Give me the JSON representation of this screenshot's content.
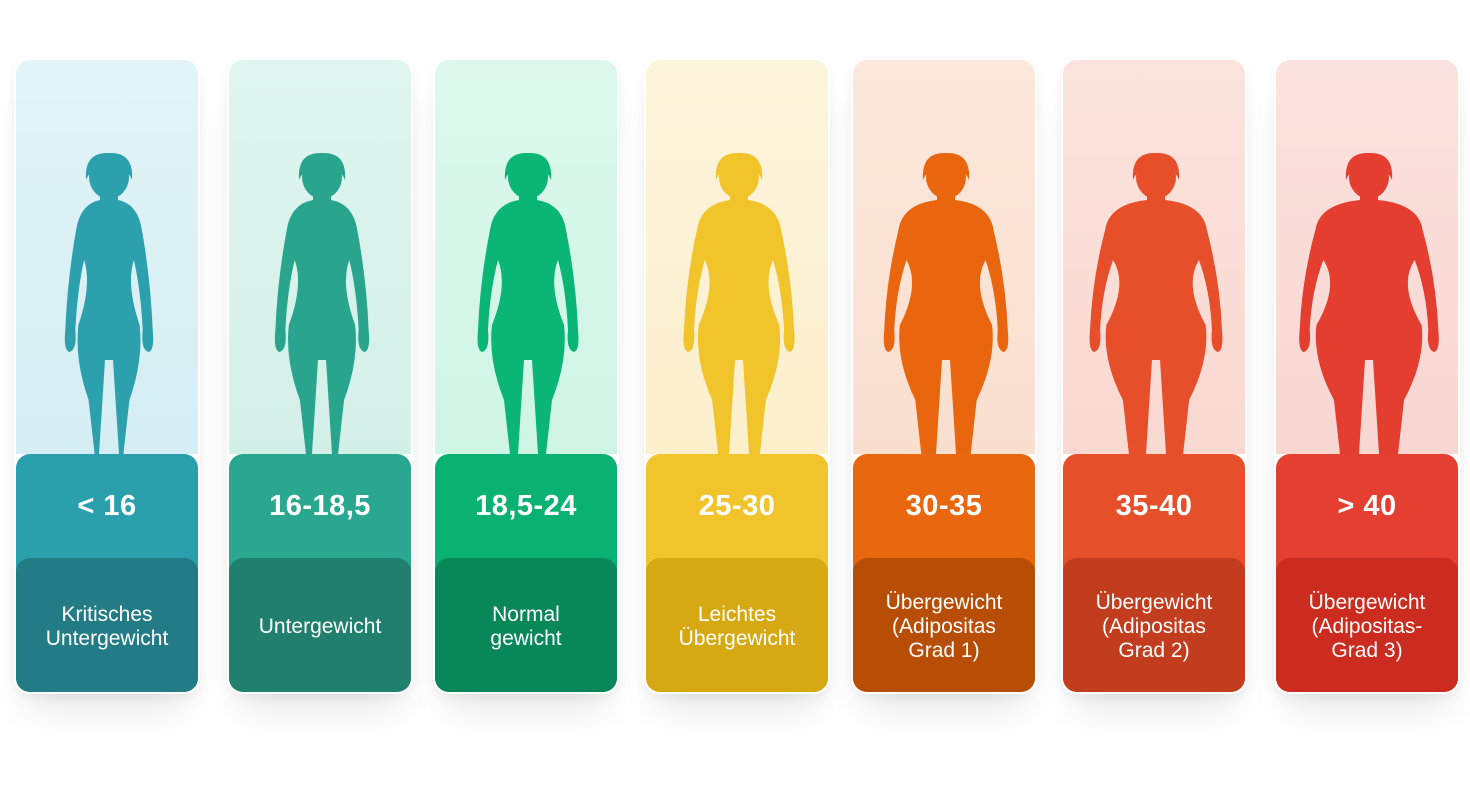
{
  "categories": [
    {
      "range": "< 16",
      "label": "Kritisches\nUntergewicht",
      "colors": {
        "bg_top": "#e2f4f8",
        "bg_bottom": "#d4eef3",
        "figure": "#2ca0ad",
        "value_bg": "#2ba0ad",
        "label_bg": "#237b85"
      },
      "figure_width": 0.85
    },
    {
      "range": "16-18,5",
      "label": "Untergewicht",
      "colors": {
        "bg_top": "#e0f5f0",
        "bg_bottom": "#d3f0e8",
        "figure": "#2aa58d",
        "value_bg": "#2aa78f",
        "label_bg": "#217f6e"
      },
      "figure_width": 0.92
    },
    {
      "range": "18,5-24",
      "label": "Normal\ngewicht",
      "colors": {
        "bg_top": "#dcf8ed",
        "bg_bottom": "#cff5e5",
        "figure": "#0ab575",
        "value_bg": "#09b272",
        "label_bg": "#088758"
      },
      "figure_width": 1.0
    },
    {
      "range": "25-30",
      "label": "Leichtes\nÜbergewicht",
      "colors": {
        "bg_top": "#fdf4dc",
        "bg_bottom": "#fcefcc",
        "figure": "#f1c42b",
        "value_bg": "#f2c42c",
        "label_bg": "#d6a812"
      },
      "figure_width": 1.12
    },
    {
      "range": "30-35",
      "label": "Übergewicht\n(Adipositas\nGrad 1)",
      "colors": {
        "bg_top": "#fce8dc",
        "bg_bottom": "#fadfcf",
        "figure": "#e9660f",
        "value_bg": "#e9680f",
        "label_bg": "#b84e06"
      },
      "figure_width": 1.28
    },
    {
      "range": "35-40",
      "label": "Übergewicht\n(Adipositas\nGrad 2)",
      "colors": {
        "bg_top": "#fce3dd",
        "bg_bottom": "#f9d9d1",
        "figure": "#e64f2a",
        "value_bg": "#e5502b",
        "label_bg": "#c23d1d"
      },
      "figure_width": 1.38
    },
    {
      "range": "> 40",
      "label": "Übergewicht\n(Adipositas-\nGrad 3)",
      "colors": {
        "bg_top": "#fce2df",
        "bg_bottom": "#f8d6d2",
        "figure": "#e43e30",
        "value_bg": "#e43f30",
        "label_bg": "#cc2b1f"
      },
      "figure_width": 1.46
    }
  ]
}
